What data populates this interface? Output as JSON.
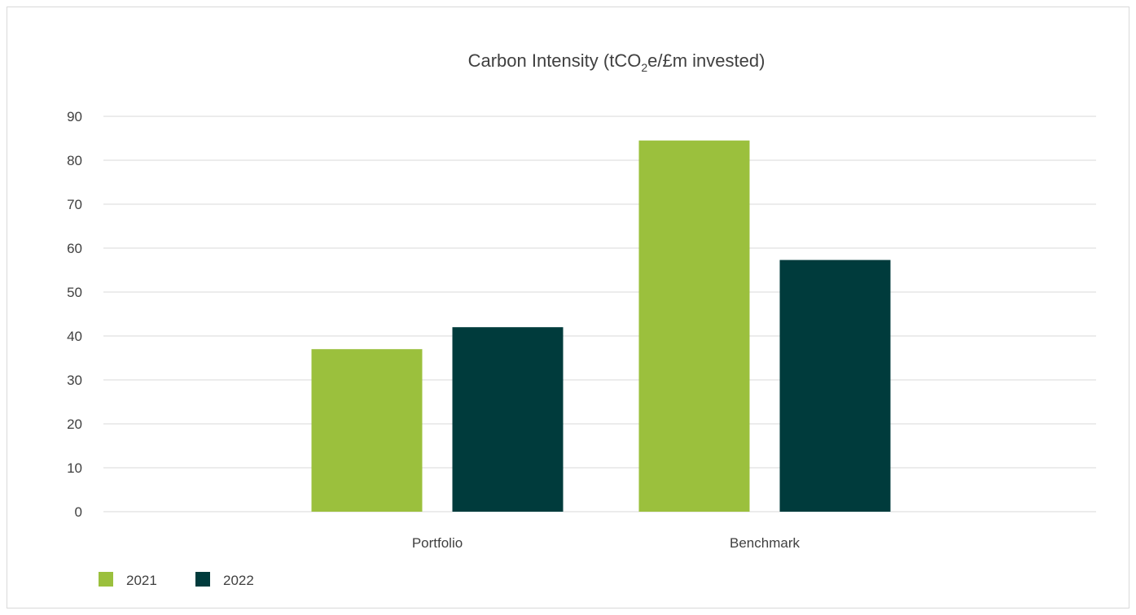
{
  "chart_data": {
    "type": "bar",
    "title": {
      "prefix": "Carbon Intensity (tCO",
      "subscript": "2",
      "suffix": "e/£m invested)"
    },
    "xlabel": "",
    "ylabel": "",
    "categories": [
      "Portfolio",
      "Benchmark"
    ],
    "series": [
      {
        "name": "2021",
        "values": [
          37,
          84.5
        ],
        "color": "#9bc03d"
      },
      {
        "name": "2022",
        "values": [
          42,
          57.3
        ],
        "color": "#003b3c"
      }
    ],
    "ylim": [
      0,
      90
    ],
    "yticks": [
      0,
      10,
      20,
      30,
      40,
      50,
      60,
      70,
      80,
      90
    ],
    "grid": true,
    "legend_position": "bottom-left"
  }
}
